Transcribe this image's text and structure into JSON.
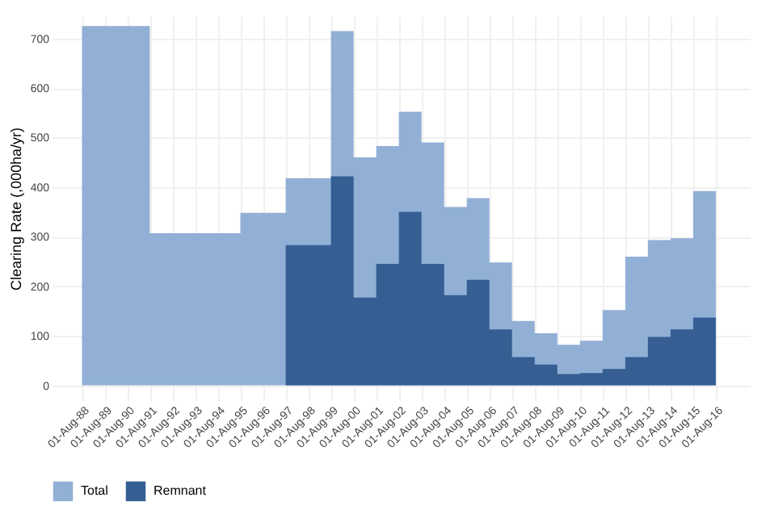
{
  "chart_data": {
    "type": "area",
    "ylabel": "Clearing Rate (,000ha/yr)",
    "x": [
      "1988-08-01",
      "1989-08-01",
      "1990-08-01",
      "1991-08-01",
      "1992-08-01",
      "1993-08-01",
      "1994-08-01",
      "1995-08-01",
      "1996-08-01",
      "1997-08-01",
      "1998-08-01",
      "1999-08-01",
      "2000-08-01",
      "2001-08-01",
      "2002-08-01",
      "2003-08-01",
      "2004-08-01",
      "2005-08-01",
      "2006-08-01",
      "2007-08-01",
      "2008-08-01",
      "2009-08-01",
      "2010-08-01",
      "2011-08-01",
      "2012-08-01",
      "2013-08-01",
      "2014-08-01",
      "2015-08-01",
      "2016-08-01"
    ],
    "series": [
      {
        "name": "Total",
        "color": "#92b0d6",
        "values": [
          725,
          725,
          725,
          307,
          307,
          307,
          307,
          348,
          348,
          418,
          418,
          715,
          460,
          483,
          552,
          490,
          360,
          378,
          248,
          130,
          105,
          82,
          90,
          152,
          260,
          293,
          297,
          392,
          392
        ]
      },
      {
        "name": "Remnant",
        "color": "#355f93",
        "x": [
          "1997-08-01",
          "1998-08-01",
          "1999-08-01",
          "2000-08-01",
          "2001-08-01",
          "2002-08-01",
          "2003-08-01",
          "2004-08-01",
          "2005-08-01",
          "2006-08-01",
          "2007-08-01",
          "2008-08-01",
          "2009-08-01",
          "2010-08-01",
          "2011-08-01",
          "2012-08-01",
          "2013-08-01",
          "2014-08-01",
          "2015-08-01",
          "2016-08-01"
        ],
        "values": [
          283,
          283,
          422,
          177,
          245,
          350,
          245,
          182,
          213,
          113,
          57,
          42,
          23,
          25,
          33,
          57,
          98,
          113,
          137,
          137
        ]
      }
    ],
    "xlim": [
      "1987-04-01",
      "2018-02-01"
    ],
    "xticks": [
      {
        "value": "1988-08-01",
        "label": "01-Aug-88"
      },
      {
        "value": "1989-08-01",
        "label": "01-Aug-89"
      },
      {
        "value": "1990-08-01",
        "label": "01-Aug-90"
      },
      {
        "value": "1991-08-01",
        "label": "01-Aug-91"
      },
      {
        "value": "1992-08-01",
        "label": "01-Aug-92"
      },
      {
        "value": "1993-08-01",
        "label": "01-Aug-93"
      },
      {
        "value": "1994-08-01",
        "label": "01-Aug-94"
      },
      {
        "value": "1995-08-01",
        "label": "01-Aug-95"
      },
      {
        "value": "1996-08-01",
        "label": "01-Aug-96"
      },
      {
        "value": "1997-08-01",
        "label": "01-Aug-97"
      },
      {
        "value": "1998-08-01",
        "label": "01-Aug-98"
      },
      {
        "value": "1999-08-01",
        "label": "01-Aug-99"
      },
      {
        "value": "2000-08-01",
        "label": "01-Aug-00"
      },
      {
        "value": "2001-08-01",
        "label": "01-Aug-01"
      },
      {
        "value": "2002-08-01",
        "label": "01-Aug-02"
      },
      {
        "value": "2003-08-01",
        "label": "01-Aug-03"
      },
      {
        "value": "2004-08-01",
        "label": "01-Aug-04"
      },
      {
        "value": "2005-08-01",
        "label": "01-Aug-05"
      },
      {
        "value": "2006-08-01",
        "label": "01-Aug-06"
      },
      {
        "value": "2007-08-01",
        "label": "01-Aug-07"
      },
      {
        "value": "2008-08-01",
        "label": "01-Aug-08"
      },
      {
        "value": "2009-08-01",
        "label": "01-Aug-09"
      },
      {
        "value": "2010-08-01",
        "label": "01-Aug-10"
      },
      {
        "value": "2011-08-01",
        "label": "01-Aug-11"
      },
      {
        "value": "2012-08-01",
        "label": "01-Aug-12"
      },
      {
        "value": "2013-08-01",
        "label": "01-Aug-13"
      },
      {
        "value": "2014-08-01",
        "label": "01-Aug-14"
      },
      {
        "value": "2015-08-01",
        "label": "01-Aug-15"
      },
      {
        "value": "2016-08-01",
        "label": "01-Aug-16"
      }
    ],
    "ylim": [
      -30,
      745
    ],
    "yticks": [
      0,
      100,
      200,
      300,
      400,
      500,
      600,
      700
    ],
    "grid": true,
    "legend": "bottom"
  }
}
